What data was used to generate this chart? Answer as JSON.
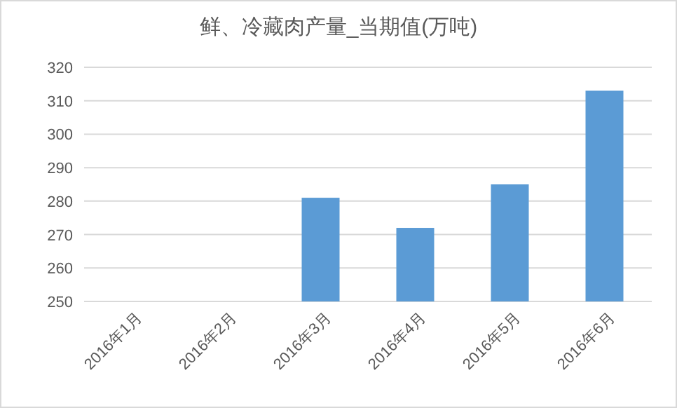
{
  "chart_data": {
    "type": "bar",
    "title": "鲜、冷藏肉产量_当期值(万吨)",
    "categories": [
      "2016年1月",
      "2016年2月",
      "2016年3月",
      "2016年4月",
      "2016年5月",
      "2016年6月"
    ],
    "values": [
      null,
      null,
      281,
      272,
      285,
      313
    ],
    "color": "#5b9bd5",
    "ylim": [
      250,
      320
    ],
    "yticks": [
      250,
      260,
      270,
      280,
      290,
      300,
      310,
      320
    ],
    "grid": "y"
  }
}
